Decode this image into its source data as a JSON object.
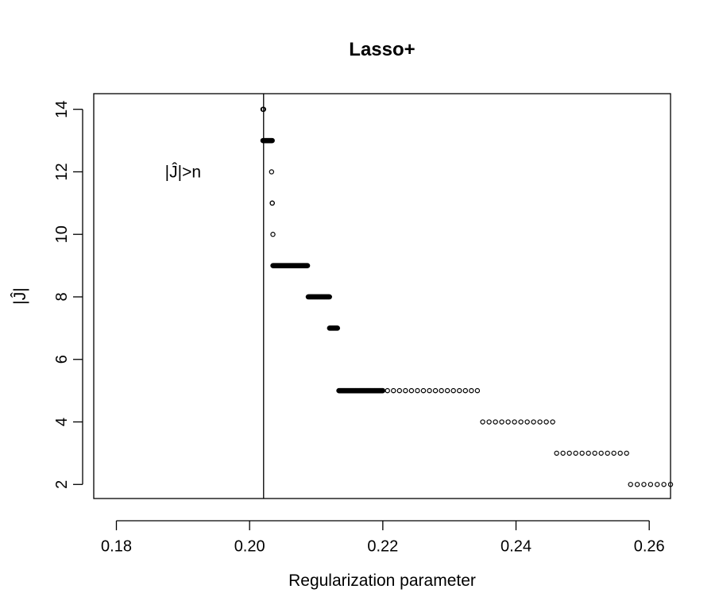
{
  "chart_data": {
    "type": "scatter",
    "title": "Lasso+",
    "xlabel": "Regularization parameter",
    "ylabel": "|Ĵ|",
    "xlim": [
      0.1766,
      0.2632
    ],
    "ylim": [
      1.55,
      14.5
    ],
    "xticks": [
      0.18,
      0.2,
      0.22,
      0.24,
      0.26
    ],
    "xtick_labels": [
      "0.18",
      "0.20",
      "0.22",
      "0.24",
      "0.26"
    ],
    "yticks": [
      2,
      4,
      6,
      8,
      10,
      12,
      14
    ],
    "ytick_labels": [
      "2",
      "4",
      "6",
      "8",
      "10",
      "12",
      "14"
    ],
    "grid": false,
    "vline": 0.2021,
    "annotation": {
      "text": "|Ĵ|>n",
      "x": 0.19,
      "y": 12
    },
    "marker": "open-circle",
    "segments": [
      {
        "y": 14,
        "from": 0.202,
        "to": 0.2021,
        "points": 2
      },
      {
        "y": 13,
        "from": 0.202,
        "to": 0.2034,
        "points": 25
      },
      {
        "y": 12,
        "from": 0.2033,
        "to": 0.2033,
        "points": 1
      },
      {
        "y": 11,
        "from": 0.2034,
        "to": 0.2034,
        "points": 2
      },
      {
        "y": 10,
        "from": 0.2035,
        "to": 0.2035,
        "points": 1
      },
      {
        "y": 9,
        "from": 0.2035,
        "to": 0.2087,
        "points": 90
      },
      {
        "y": 8,
        "from": 0.2088,
        "to": 0.212,
        "points": 55
      },
      {
        "y": 7,
        "from": 0.212,
        "to": 0.2132,
        "points": 20
      },
      {
        "y": 5,
        "from": 0.2134,
        "to": 0.22,
        "points": 110
      },
      {
        "y": 5,
        "from": 0.2207,
        "to": 0.2342,
        "points": 16
      },
      {
        "y": 4,
        "from": 0.235,
        "to": 0.2455,
        "points": 12
      },
      {
        "y": 3,
        "from": 0.2461,
        "to": 0.2566,
        "points": 12
      },
      {
        "y": 2,
        "from": 0.2572,
        "to": 0.2632,
        "points": 7
      }
    ]
  }
}
